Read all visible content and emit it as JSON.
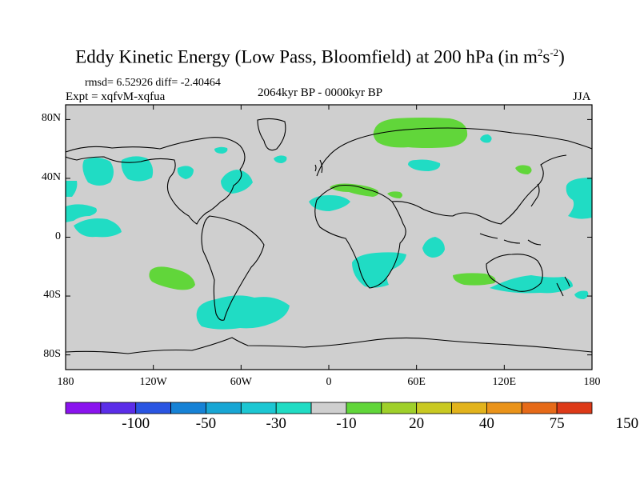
{
  "title": {
    "main": "Eddy Kinetic Energy (Low Pass, Bloomfield) at 200 hPa (in m",
    "sup1": "2",
    "mid": "s",
    "sup2": "-2",
    "end": ")"
  },
  "stats": {
    "rmsd": "rmsd= 6.52926 diff= -2.40464",
    "expt": "Expt = xqfvM-xqfua",
    "period": "2064kyr BP - 0000kyr BP",
    "season": "JJA"
  },
  "axes": {
    "lon_labels": [
      "180",
      "120W",
      "60W",
      "0",
      "60E",
      "120E",
      "180"
    ],
    "lat_labels": [
      "80N",
      "40N",
      "0",
      "40S",
      "80S"
    ]
  },
  "colorbar": {
    "colors": [
      "#8a13ee",
      "#5b2de8",
      "#2a55e2",
      "#1682d6",
      "#18a6d4",
      "#1cc7d3",
      "#20dcc4",
      "#cfcfcf",
      "#61d63a",
      "#9fd02a",
      "#c9c922",
      "#e2b31c",
      "#ea931a",
      "#e66a18",
      "#dd3a18"
    ],
    "labels": [
      "-100",
      "-50",
      "-30",
      "-10",
      "20",
      "40",
      "75",
      "150"
    ]
  },
  "legend_colors": {
    "negative_fill": "#20dcc4",
    "positive_fill": "#61d63a",
    "neutral_fill": "#cfcfcf"
  }
}
